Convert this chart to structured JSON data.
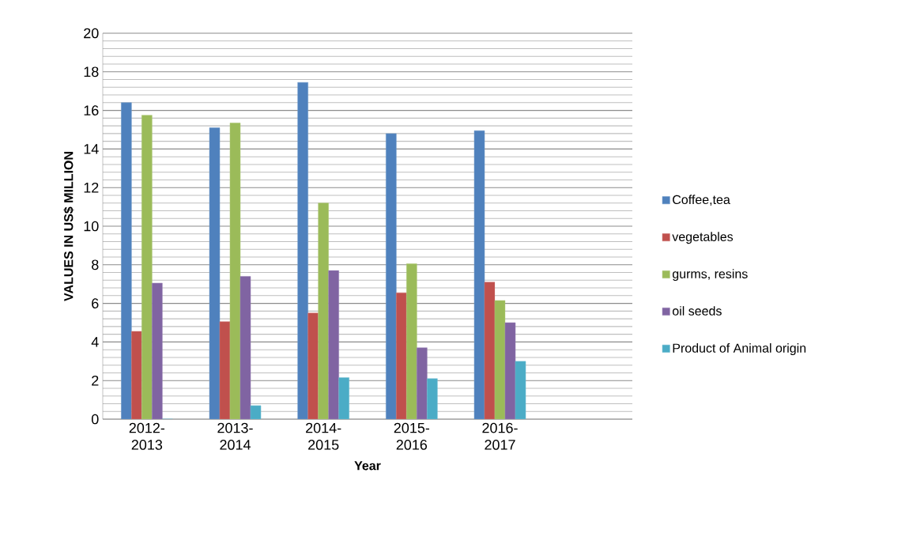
{
  "chart_data": {
    "type": "bar",
    "xlabel": "Year",
    "ylabel": "VALUES IN US$ MILLION",
    "categories": [
      "2012-2013",
      "2013-2014",
      "2014-2015",
      "2015-2016",
      "2016-2017",
      null
    ],
    "series": [
      {
        "name": "Coffee,tea",
        "color": "#4f81bd",
        "values": [
          16.4,
          15.1,
          17.45,
          14.8,
          14.95,
          null
        ]
      },
      {
        "name": "vegetables",
        "color": "#c0504d",
        "values": [
          4.55,
          5.05,
          5.5,
          6.55,
          7.1,
          null
        ]
      },
      {
        "name": "gurms, resins",
        "color": "#9bbb59",
        "values": [
          15.75,
          15.35,
          11.2,
          8.05,
          6.15,
          null
        ]
      },
      {
        "name": "oil seeds",
        "color": "#8064a2",
        "values": [
          7.05,
          7.4,
          7.7,
          3.7,
          5.0,
          null
        ]
      },
      {
        "name": "Product of Animal origin",
        "color": "#4bacc6",
        "values": [
          0,
          0.7,
          2.15,
          2.1,
          3.0,
          null
        ]
      }
    ],
    "ylim": [
      0,
      20
    ],
    "yticks": [
      0,
      2,
      4,
      6,
      8,
      10,
      12,
      14,
      16,
      18,
      20
    ],
    "grid": "y",
    "legend": "right"
  }
}
